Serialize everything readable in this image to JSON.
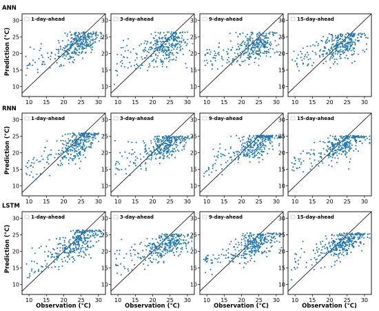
{
  "figure": {
    "x_label": "Observation (°C)",
    "y_label": "Prediction (°C)",
    "rows": [
      "ANN",
      "RNN",
      "LSTM"
    ],
    "columns": [
      "1-day-ahead",
      "3-day-ahead",
      "9-day-ahead",
      "15-day-ahead"
    ]
  },
  "chart_data": {
    "type": "scatter",
    "panel_grid": {
      "rows": 3,
      "cols": 4
    },
    "xlim": [
      8,
      32
    ],
    "ylim": [
      7,
      32
    ],
    "xticks": [
      10,
      15,
      20,
      25,
      30
    ],
    "yticks": [
      10,
      15,
      20,
      25,
      30
    ],
    "reference_line": "y = x",
    "marker_color": "#1f77b4",
    "points_per_panel": 320,
    "panels": [
      {
        "row": "ANN",
        "horizon": "1-day-ahead",
        "slope": 0.5,
        "intercept": 10.7,
        "noise_sd": 2.2,
        "cap": 26.5
      },
      {
        "row": "ANN",
        "horizon": "3-day-ahead",
        "slope": 0.35,
        "intercept": 14.0,
        "noise_sd": 2.7,
        "cap": 26.5
      },
      {
        "row": "ANN",
        "horizon": "9-day-ahead",
        "slope": 0.33,
        "intercept": 14.6,
        "noise_sd": 2.4,
        "cap": 26.5
      },
      {
        "row": "ANN",
        "horizon": "15-day-ahead",
        "slope": 0.28,
        "intercept": 16.2,
        "noise_sd": 2.1,
        "cap": 26.2
      },
      {
        "row": "RNN",
        "horizon": "1-day-ahead",
        "slope": 0.55,
        "intercept": 9.6,
        "noise_sd": 2.3,
        "cap": 26.0
      },
      {
        "row": "RNN",
        "horizon": "3-day-ahead",
        "slope": 0.4,
        "intercept": 12.6,
        "noise_sd": 2.2,
        "cap": 25.2
      },
      {
        "row": "RNN",
        "horizon": "9-day-ahead",
        "slope": 0.45,
        "intercept": 11.8,
        "noise_sd": 2.1,
        "cap": 25.3
      },
      {
        "row": "RNN",
        "horizon": "15-day-ahead",
        "slope": 0.5,
        "intercept": 10.8,
        "noise_sd": 2.2,
        "cap": 25.2
      },
      {
        "row": "LSTM",
        "horizon": "1-day-ahead",
        "slope": 0.52,
        "intercept": 10.2,
        "noise_sd": 2.3,
        "cap": 26.5
      },
      {
        "row": "LSTM",
        "horizon": "3-day-ahead",
        "slope": 0.4,
        "intercept": 12.6,
        "noise_sd": 2.1,
        "cap": 25.3
      },
      {
        "row": "LSTM",
        "horizon": "9-day-ahead",
        "slope": 0.42,
        "intercept": 12.4,
        "noise_sd": 2.0,
        "cap": 25.6
      },
      {
        "row": "LSTM",
        "horizon": "15-day-ahead",
        "slope": 0.45,
        "intercept": 11.8,
        "noise_sd": 2.2,
        "cap": 25.6
      }
    ]
  }
}
